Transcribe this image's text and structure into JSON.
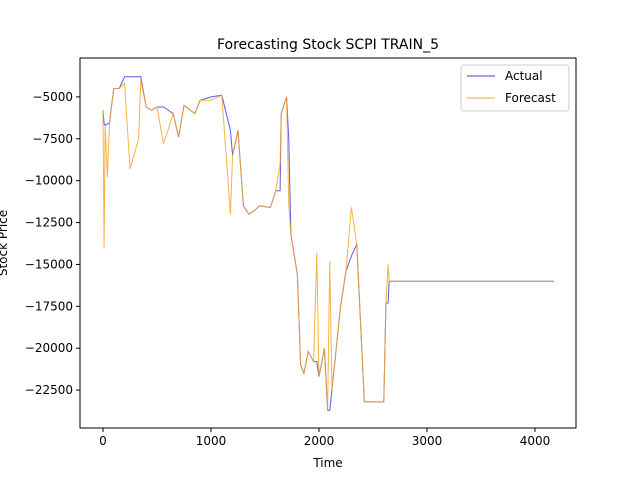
{
  "chart_data": {
    "type": "line",
    "title": "Forecasting Stock SCPI TRAIN_5",
    "x_label": "Time",
    "y_label": "Stock Price",
    "x": [
      0,
      10,
      20,
      40,
      60,
      80,
      100,
      150,
      200,
      250,
      330,
      350,
      400,
      450,
      500,
      560,
      650,
      700,
      750,
      850,
      900,
      1000,
      1100,
      1180,
      1200,
      1250,
      1300,
      1350,
      1400,
      1450,
      1550,
      1600,
      1640,
      1650,
      1700,
      1720,
      1740,
      1800,
      1830,
      1860,
      1900,
      1950,
      1980,
      2000,
      2050,
      2080,
      2100,
      2120,
      2200,
      2250,
      2300,
      2350,
      2420,
      2600,
      2620,
      2640,
      2650,
      4176
    ],
    "series": [
      {
        "name": "Actual",
        "color": "#4040e0",
        "values": [
          -5800,
          -6600,
          -6700,
          -6600,
          -6600,
          -5500,
          -4500,
          -4500,
          -3800,
          -3800,
          -3800,
          -3800,
          -5600,
          -5800,
          -5600,
          -5600,
          -6000,
          -7400,
          -5500,
          -6000,
          -5200,
          -5000,
          -4900,
          -7000,
          -8500,
          -7000,
          -11500,
          -12000,
          -11800,
          -11500,
          -11600,
          -10600,
          -10600,
          -6000,
          -5000,
          -7500,
          -13200,
          -15600,
          -21000,
          -21500,
          -20200,
          -20800,
          -20800,
          -21700,
          -20000,
          -23700,
          -23700,
          -22500,
          -17500,
          -15400,
          -14500,
          -13800,
          -23200,
          -23200,
          -17300,
          -17300,
          -16000,
          -16000
        ]
      },
      {
        "name": "Forecast",
        "color": "#f5a623",
        "values": [
          -5800,
          -14000,
          -6700,
          -9800,
          -6600,
          -5500,
          -4500,
          -4500,
          -4200,
          -9300,
          -7500,
          -4000,
          -5600,
          -5800,
          -5600,
          -7800,
          -6000,
          -7400,
          -5500,
          -6000,
          -5200,
          -5200,
          -4900,
          -12000,
          -8500,
          -7000,
          -11500,
          -12000,
          -11800,
          -11500,
          -11600,
          -10600,
          -9000,
          -6000,
          -5000,
          -11500,
          -13200,
          -15600,
          -21000,
          -21500,
          -20200,
          -20800,
          -14300,
          -21700,
          -20000,
          -23700,
          -14800,
          -22500,
          -17500,
          -15400,
          -11600,
          -13800,
          -23200,
          -23200,
          -17300,
          -15000,
          -16000,
          -16000
        ]
      }
    ],
    "xlim": [
      -213,
      4380
    ],
    "ylim": [
      -24762,
      -2679
    ],
    "xticks": [
      0,
      1000,
      2000,
      3000,
      4000
    ],
    "yticks": [
      {
        "value": -22500,
        "label": "−22500"
      },
      {
        "value": -20000,
        "label": "−20000"
      },
      {
        "value": -17500,
        "label": "−17500"
      },
      {
        "value": -15000,
        "label": "−15000"
      },
      {
        "value": -12500,
        "label": "−12500"
      },
      {
        "value": -10000,
        "label": "−10000"
      },
      {
        "value": -7500,
        "label": "−7500"
      },
      {
        "value": -5000,
        "label": "−5000"
      }
    ],
    "legend": "upper right"
  }
}
